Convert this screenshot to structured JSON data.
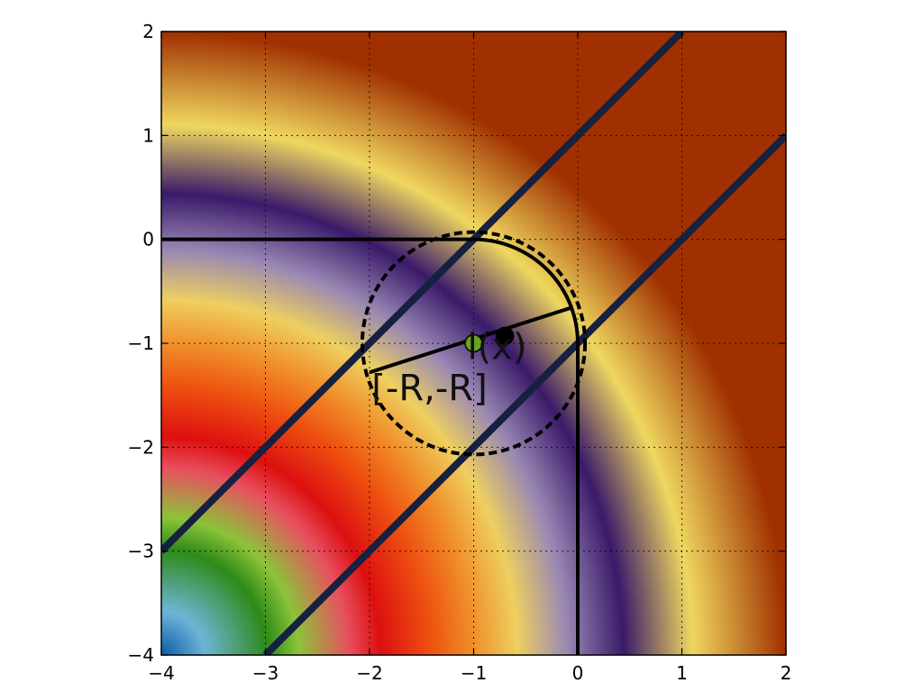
{
  "chart_data": {
    "type": "heatmap",
    "title": "",
    "xlabel": "",
    "ylabel": "",
    "xlim": [
      -4,
      2
    ],
    "ylim": [
      -4,
      2
    ],
    "xticks": [
      -4,
      -3,
      -2,
      -1,
      0,
      1,
      2
    ],
    "yticks": [
      -4,
      -3,
      -2,
      -1,
      0,
      1,
      2
    ],
    "xtick_labels": [
      "−4",
      "−3",
      "−2",
      "−1",
      "0",
      "1",
      "2"
    ],
    "ytick_labels": [
      "−4",
      "−3",
      "−2",
      "−1",
      "0",
      "1",
      "2"
    ],
    "grid": true,
    "grid_style": "dotted",
    "colormap": [
      "#0a5aa8",
      "#6fb5d8",
      "#2e8a18",
      "#8cc43a",
      "#e85060",
      "#dd1010",
      "#ee5010",
      "#f0902a",
      "#eed060",
      "#9a88b4",
      "#3a1a6a",
      "#f0d860",
      "#a03000"
    ],
    "diagonal_lines": [
      {
        "points": [
          [
            -4,
            -3
          ],
          [
            1,
            2
          ]
        ],
        "color": "#162040"
      },
      {
        "points": [
          [
            -3,
            -4
          ],
          [
            2,
            1
          ]
        ],
        "color": "#162040"
      }
    ],
    "boundary_lines": [
      {
        "points": [
          [
            -4,
            0
          ],
          [
            -1,
            0
          ]
        ],
        "color": "#000000"
      },
      {
        "points": [
          [
            0,
            -1
          ],
          [
            0,
            -4
          ]
        ],
        "color": "#000000"
      }
    ],
    "boundary_arc": {
      "center": [
        -1,
        -1
      ],
      "radius": 1,
      "from_deg": 90,
      "to_deg": 0,
      "color": "#000000"
    },
    "dashed_circle": {
      "center": [
        -1,
        -1
      ],
      "radius": 1.07,
      "color": "#000000"
    },
    "segment": {
      "points": [
        [
          -2.0,
          -1.28
        ],
        [
          -0.07,
          -0.66
        ]
      ],
      "color": "#000000"
    },
    "points": [
      {
        "x": -1.0,
        "y": -1.0,
        "color": "#6aa220"
      },
      {
        "x": -0.7,
        "y": -0.93,
        "color": "#000000"
      }
    ],
    "annotations": [
      {
        "text": "l(x)",
        "x": -1.06,
        "y": -1.15
      },
      {
        "text": "[-R,-R]",
        "x": -1.98,
        "y": -1.55
      }
    ]
  }
}
